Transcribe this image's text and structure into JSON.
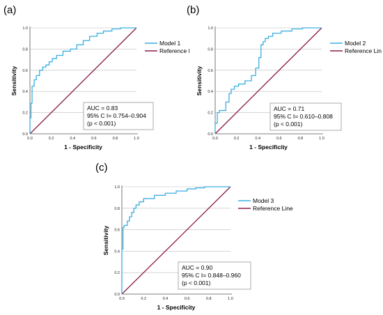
{
  "panels": [
    {
      "label": "(a)"
    },
    {
      "label": "(b)"
    },
    {
      "label": "(c)"
    }
  ],
  "chart_data": [
    {
      "type": "line",
      "xlabel": "1 - Specificity",
      "ylabel": "Sensitivity",
      "xlim": [
        0,
        1
      ],
      "ylim": [
        0,
        1
      ],
      "xticks": [
        "0.0",
        "0.2",
        "0.4",
        "0.6",
        "0.8",
        "1.0"
      ],
      "yticks": [
        "0.0",
        "0.2",
        "0.4",
        "0.6",
        "0.8",
        "1.0"
      ],
      "grid": "horizontal",
      "legend": "top-right",
      "colors": {
        "model": "#3aaee0",
        "reference": "#8b1a4a"
      },
      "series": [
        {
          "name": "Model 1",
          "x": [
            0,
            0,
            0.01,
            0.01,
            0.02,
            0.02,
            0.04,
            0.04,
            0.06,
            0.06,
            0.09,
            0.09,
            0.12,
            0.12,
            0.15,
            0.15,
            0.18,
            0.18,
            0.21,
            0.21,
            0.25,
            0.25,
            0.31,
            0.31,
            0.38,
            0.38,
            0.44,
            0.44,
            0.5,
            0.5,
            0.56,
            0.56,
            0.63,
            0.63,
            0.69,
            0.69,
            0.77,
            0.77,
            0.85,
            0.85,
            1.0
          ],
          "y": [
            0,
            0.15,
            0.15,
            0.29,
            0.29,
            0.45,
            0.45,
            0.51,
            0.51,
            0.55,
            0.55,
            0.6,
            0.6,
            0.63,
            0.63,
            0.65,
            0.65,
            0.68,
            0.68,
            0.71,
            0.71,
            0.74,
            0.74,
            0.78,
            0.78,
            0.8,
            0.8,
            0.84,
            0.84,
            0.88,
            0.88,
            0.92,
            0.92,
            0.95,
            0.95,
            0.97,
            0.97,
            0.99,
            0.99,
            1.0,
            1.0
          ]
        },
        {
          "name": "Reference Line",
          "x": [
            0,
            1
          ],
          "y": [
            0,
            1
          ]
        }
      ],
      "annotation": [
        "AUC = 0.83",
        "95% C I= 0.754–0.904",
        "(p < 0.001)"
      ]
    },
    {
      "type": "line",
      "xlabel": "1 - Specificity",
      "ylabel": "Sensitivity",
      "xlim": [
        0,
        1
      ],
      "ylim": [
        0,
        1
      ],
      "xticks": [
        "0.0",
        "0.2",
        "0.4",
        "0.6",
        "0.8",
        "1.0"
      ],
      "yticks": [
        "0.0",
        "0.2",
        "0.4",
        "0.6",
        "0.8",
        "1.0"
      ],
      "grid": "horizontal",
      "legend": "top-right",
      "colors": {
        "model": "#3aaee0",
        "reference": "#8b1a4a"
      },
      "series": [
        {
          "name": "Model 2",
          "x": [
            0,
            0,
            0.02,
            0.02,
            0.04,
            0.04,
            0.1,
            0.1,
            0.13,
            0.13,
            0.15,
            0.15,
            0.18,
            0.18,
            0.22,
            0.22,
            0.28,
            0.28,
            0.34,
            0.34,
            0.38,
            0.38,
            0.41,
            0.41,
            0.43,
            0.43,
            0.45,
            0.45,
            0.47,
            0.47,
            0.5,
            0.5,
            0.54,
            0.54,
            0.62,
            0.62,
            0.72,
            0.72,
            0.82,
            0.82,
            1.0
          ],
          "y": [
            0,
            0.1,
            0.1,
            0.2,
            0.2,
            0.22,
            0.22,
            0.3,
            0.3,
            0.38,
            0.38,
            0.42,
            0.42,
            0.45,
            0.45,
            0.47,
            0.47,
            0.5,
            0.5,
            0.55,
            0.55,
            0.62,
            0.62,
            0.72,
            0.72,
            0.84,
            0.84,
            0.87,
            0.87,
            0.9,
            0.9,
            0.92,
            0.92,
            0.95,
            0.95,
            0.97,
            0.97,
            0.99,
            0.99,
            1.0,
            1.0
          ]
        },
        {
          "name": "Reference Line",
          "x": [
            0,
            1
          ],
          "y": [
            0,
            1
          ]
        }
      ],
      "annotation": [
        "AUC = 0.71",
        "95% C I= 0.610–0.808",
        "(p < 0.001)"
      ]
    },
    {
      "type": "line",
      "xlabel": "1 - Specificity",
      "ylabel": "Sensitivity",
      "xlim": [
        0,
        1
      ],
      "ylim": [
        0,
        1
      ],
      "xticks": [
        "0.0",
        "0.2",
        "0.4",
        "0.6",
        "0.8",
        "1.0"
      ],
      "yticks": [
        "0.0",
        "0.2",
        "0.4",
        "0.6",
        "0.8",
        "1.0"
      ],
      "grid": "horizontal",
      "legend": "top-right",
      "colors": {
        "model": "#3aaee0",
        "reference": "#8b1a4a"
      },
      "series": [
        {
          "name": "Model 3",
          "x": [
            0,
            0,
            0.01,
            0.01,
            0.02,
            0.02,
            0.05,
            0.05,
            0.07,
            0.07,
            0.09,
            0.09,
            0.11,
            0.11,
            0.13,
            0.13,
            0.16,
            0.16,
            0.2,
            0.2,
            0.3,
            0.3,
            0.4,
            0.4,
            0.5,
            0.5,
            0.6,
            0.6,
            0.68,
            0.68,
            0.76,
            0.76,
            1.0
          ],
          "y": [
            0,
            0.42,
            0.42,
            0.62,
            0.62,
            0.64,
            0.64,
            0.68,
            0.68,
            0.72,
            0.72,
            0.76,
            0.76,
            0.8,
            0.8,
            0.83,
            0.83,
            0.86,
            0.86,
            0.89,
            0.89,
            0.92,
            0.92,
            0.94,
            0.94,
            0.96,
            0.96,
            0.98,
            0.98,
            0.99,
            0.99,
            1.0,
            1.0
          ]
        },
        {
          "name": "Reference Line",
          "x": [
            0,
            1
          ],
          "y": [
            0,
            1
          ]
        }
      ],
      "annotation": [
        "AUC = 0.90",
        "95% C I= 0.848–0.960",
        "(p < 0.001)"
      ]
    }
  ]
}
